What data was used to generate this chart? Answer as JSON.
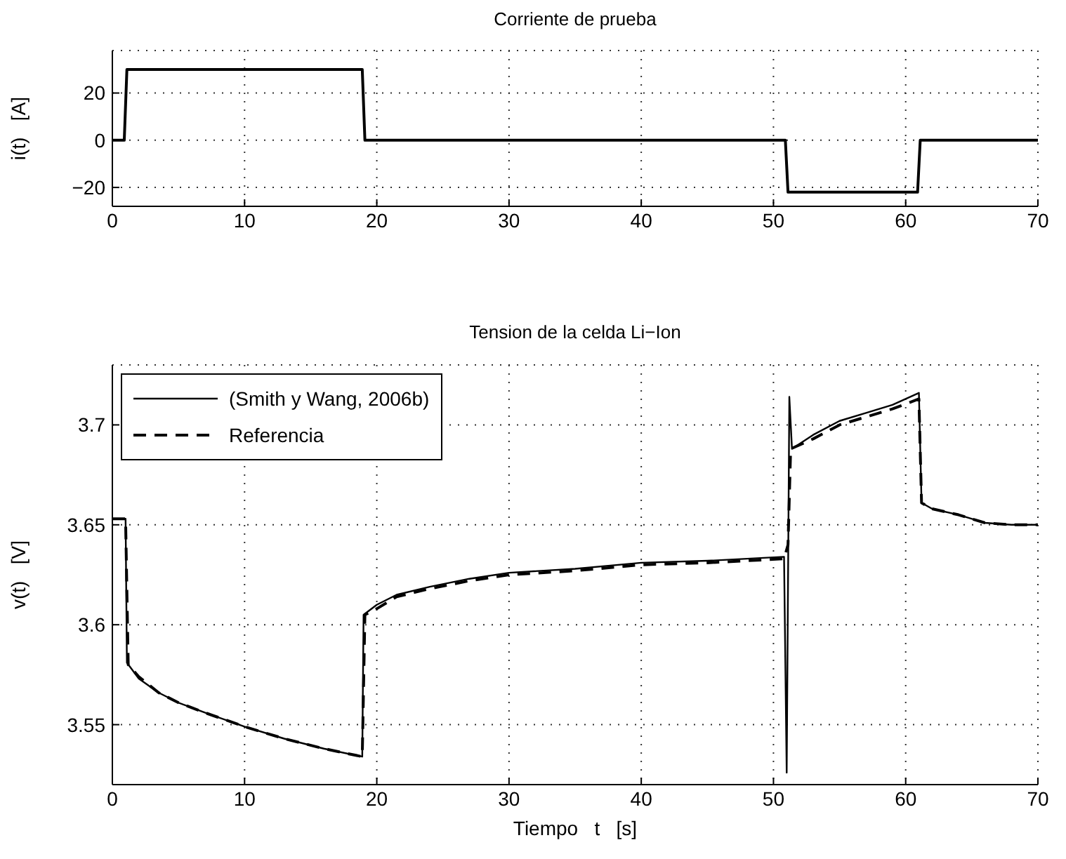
{
  "chart_data": [
    {
      "type": "line",
      "title": "Corriente de prueba",
      "ylabel": "i(t)   [A]",
      "xlim": [
        0,
        70
      ],
      "xticks": [
        0,
        10,
        20,
        30,
        40,
        50,
        60,
        70
      ],
      "ylim": [
        -28,
        38
      ],
      "yticks": [
        -20,
        0,
        20
      ],
      "grid": true,
      "legend": false,
      "line_style": "solid",
      "marker": "none",
      "series": [
        {
          "color": "#000000",
          "x": [
            0,
            0.9,
            1.1,
            18.9,
            19.1,
            50.9,
            51.1,
            60.9,
            61.1,
            70
          ],
          "values": [
            0,
            0,
            30,
            30,
            0,
            0,
            -22,
            -22,
            0,
            0
          ]
        }
      ]
    },
    {
      "type": "line",
      "title": "Tension de la celda Li−Ion",
      "xlabel": "Tiempo   t   [s]",
      "ylabel": "v(t)   [V]",
      "xlim": [
        0,
        70
      ],
      "xticks": [
        0,
        10,
        20,
        30,
        40,
        50,
        60,
        70
      ],
      "ylim": [
        3.52,
        3.73
      ],
      "yticks": [
        3.55,
        3.6,
        3.65,
        3.7
      ],
      "grid": true,
      "legend": "top left",
      "marker": "none",
      "series": [
        {
          "name": "(Smith y Wang, 2006b)",
          "color": "#000000",
          "line_style": "solid",
          "x": [
            0,
            1,
            1.1,
            2,
            3.5,
            5,
            7,
            10,
            13,
            16,
            18.9,
            19,
            20,
            21.5,
            24,
            27,
            30,
            35,
            40,
            45,
            50.8,
            51,
            51.2,
            51.4,
            53,
            55,
            57,
            59,
            61,
            61.2,
            62,
            64,
            66,
            68,
            70
          ],
          "values": [
            3.653,
            3.653,
            3.581,
            3.573,
            3.566,
            3.561,
            3.556,
            3.549,
            3.543,
            3.538,
            3.534,
            3.605,
            3.61,
            3.615,
            3.619,
            3.623,
            3.626,
            3.628,
            3.631,
            3.632,
            3.634,
            3.526,
            3.714,
            3.688,
            3.695,
            3.702,
            3.706,
            3.71,
            3.716,
            3.661,
            3.658,
            3.655,
            3.651,
            3.65,
            3.65
          ]
        },
        {
          "name": "Referencia",
          "color": "#000000",
          "line_style": "dashed",
          "x": [
            0,
            1,
            1.2,
            2,
            3.5,
            5,
            7,
            10,
            13,
            16,
            18.9,
            19.1,
            20,
            21.5,
            24,
            27,
            30,
            35,
            40,
            45,
            50.8,
            51.1,
            51.3,
            53,
            55,
            57,
            59,
            61,
            61.2,
            62,
            64,
            66,
            68,
            70
          ],
          "values": [
            3.653,
            3.653,
            3.58,
            3.574,
            3.566,
            3.561,
            3.556,
            3.549,
            3.543,
            3.538,
            3.534,
            3.605,
            3.608,
            3.614,
            3.618,
            3.622,
            3.625,
            3.627,
            3.63,
            3.631,
            3.633,
            3.64,
            3.688,
            3.693,
            3.7,
            3.704,
            3.708,
            3.713,
            3.661,
            3.658,
            3.655,
            3.651,
            3.65,
            3.65
          ]
        }
      ]
    }
  ]
}
